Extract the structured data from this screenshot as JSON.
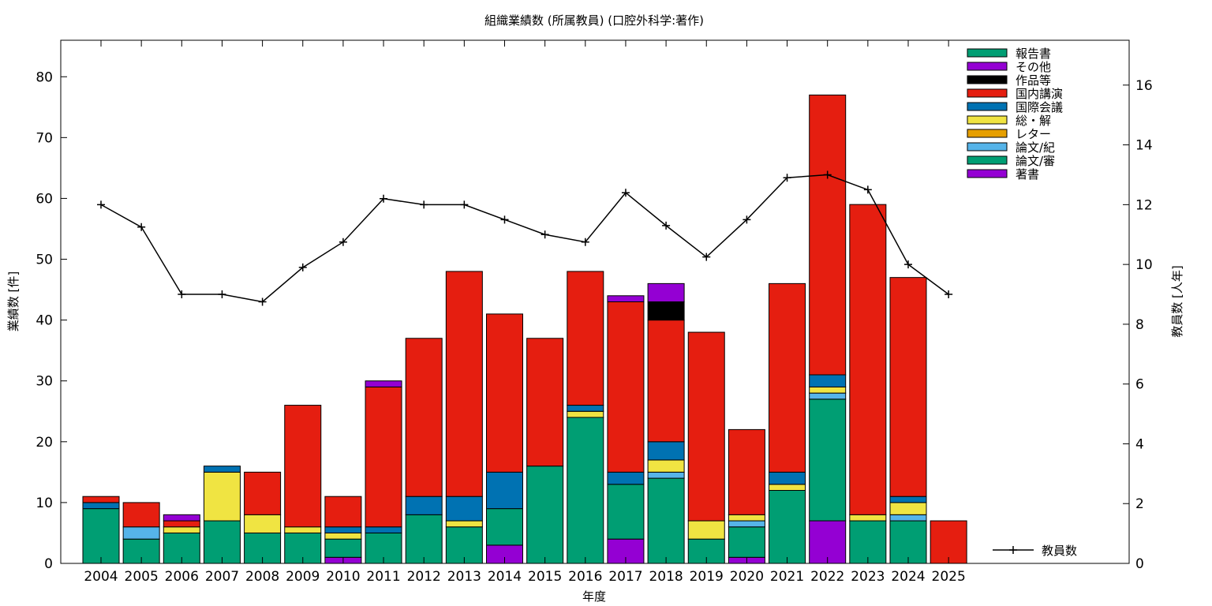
{
  "chart_data": {
    "type": "bar",
    "stacked": true,
    "title": "組織業績数 (所属教員) (口腔外科学:著作)",
    "xlabel": "年度",
    "ylabel": "業績数 [件]",
    "y2label": "教員数 [人年]",
    "ylim": [
      0,
      86
    ],
    "y2lim": [
      0,
      17.5
    ],
    "yticks": [
      0,
      10,
      20,
      30,
      40,
      50,
      60,
      70,
      80
    ],
    "y2ticks": [
      0,
      2,
      4,
      6,
      8,
      10,
      12,
      14,
      16
    ],
    "grid": false,
    "legend_position": "top-right",
    "categories": [
      "2004",
      "2005",
      "2006",
      "2007",
      "2008",
      "2009",
      "2010",
      "2011",
      "2012",
      "2013",
      "2014",
      "2015",
      "2016",
      "2017",
      "2018",
      "2019",
      "2020",
      "2021",
      "2022",
      "2023",
      "2024",
      "2025"
    ],
    "series": [
      {
        "name": "著書",
        "color": "#9400d3",
        "values": [
          0,
          0,
          0,
          0,
          0,
          0,
          1,
          0,
          0,
          0,
          3,
          0,
          0,
          4,
          0,
          0,
          1,
          0,
          7,
          0,
          0,
          0
        ]
      },
      {
        "name": "論文/審",
        "color": "#009e73",
        "values": [
          9,
          4,
          5,
          7,
          5,
          5,
          3,
          5,
          8,
          6,
          6,
          16,
          24,
          9,
          14,
          4,
          5,
          12,
          20,
          7,
          7,
          0
        ]
      },
      {
        "name": "論文/紀",
        "color": "#56b4e9",
        "values": [
          0,
          2,
          0,
          0,
          0,
          0,
          0,
          0,
          0,
          0,
          0,
          0,
          0,
          0,
          1,
          0,
          1,
          0,
          1,
          0,
          1,
          0
        ]
      },
      {
        "name": "レター",
        "color": "#e69f00",
        "values": [
          0,
          0,
          0,
          0,
          0,
          0,
          0,
          0,
          0,
          0,
          0,
          0,
          0,
          0,
          0,
          0,
          0,
          0,
          0,
          0,
          0,
          0
        ]
      },
      {
        "name": "総・解",
        "color": "#f0e442",
        "values": [
          0,
          0,
          1,
          8,
          3,
          1,
          1,
          0,
          0,
          1,
          0,
          0,
          1,
          0,
          2,
          3,
          1,
          1,
          1,
          1,
          2,
          0
        ]
      },
      {
        "name": "国際会議",
        "color": "#0072b2",
        "values": [
          1,
          0,
          0,
          1,
          0,
          0,
          1,
          1,
          3,
          4,
          6,
          0,
          1,
          2,
          3,
          0,
          0,
          2,
          2,
          0,
          1,
          0
        ]
      },
      {
        "name": "国内講演",
        "color": "#e51e10",
        "values": [
          1,
          4,
          1,
          0,
          7,
          20,
          5,
          23,
          26,
          37,
          26,
          21,
          22,
          28,
          20,
          31,
          14,
          31,
          46,
          51,
          36,
          7
        ]
      },
      {
        "name": "作品等",
        "color": "#000000",
        "values": [
          0,
          0,
          0,
          0,
          0,
          0,
          0,
          0,
          0,
          0,
          0,
          0,
          0,
          0,
          3,
          0,
          0,
          0,
          0,
          0,
          0,
          0
        ]
      },
      {
        "name": "その他",
        "color": "#9400d3",
        "values": [
          0,
          0,
          1,
          0,
          0,
          0,
          0,
          1,
          0,
          0,
          0,
          0,
          0,
          1,
          3,
          0,
          0,
          0,
          0,
          0,
          0,
          0
        ]
      },
      {
        "name": "報告書",
        "color": "#009e73",
        "values": [
          0,
          0,
          0,
          0,
          0,
          0,
          0,
          0,
          0,
          0,
          0,
          0,
          0,
          0,
          0,
          0,
          0,
          0,
          0,
          0,
          0,
          0
        ]
      }
    ],
    "line_series": {
      "name": "教員数",
      "axis": "right",
      "color": "#000000",
      "values": [
        12,
        11.25,
        9,
        9,
        8.75,
        9.9,
        10.75,
        12.2,
        12,
        12,
        11.5,
        11,
        10.75,
        12.4,
        11.3,
        10.25,
        11.5,
        12.9,
        13,
        12.5,
        10,
        9
      ]
    }
  }
}
